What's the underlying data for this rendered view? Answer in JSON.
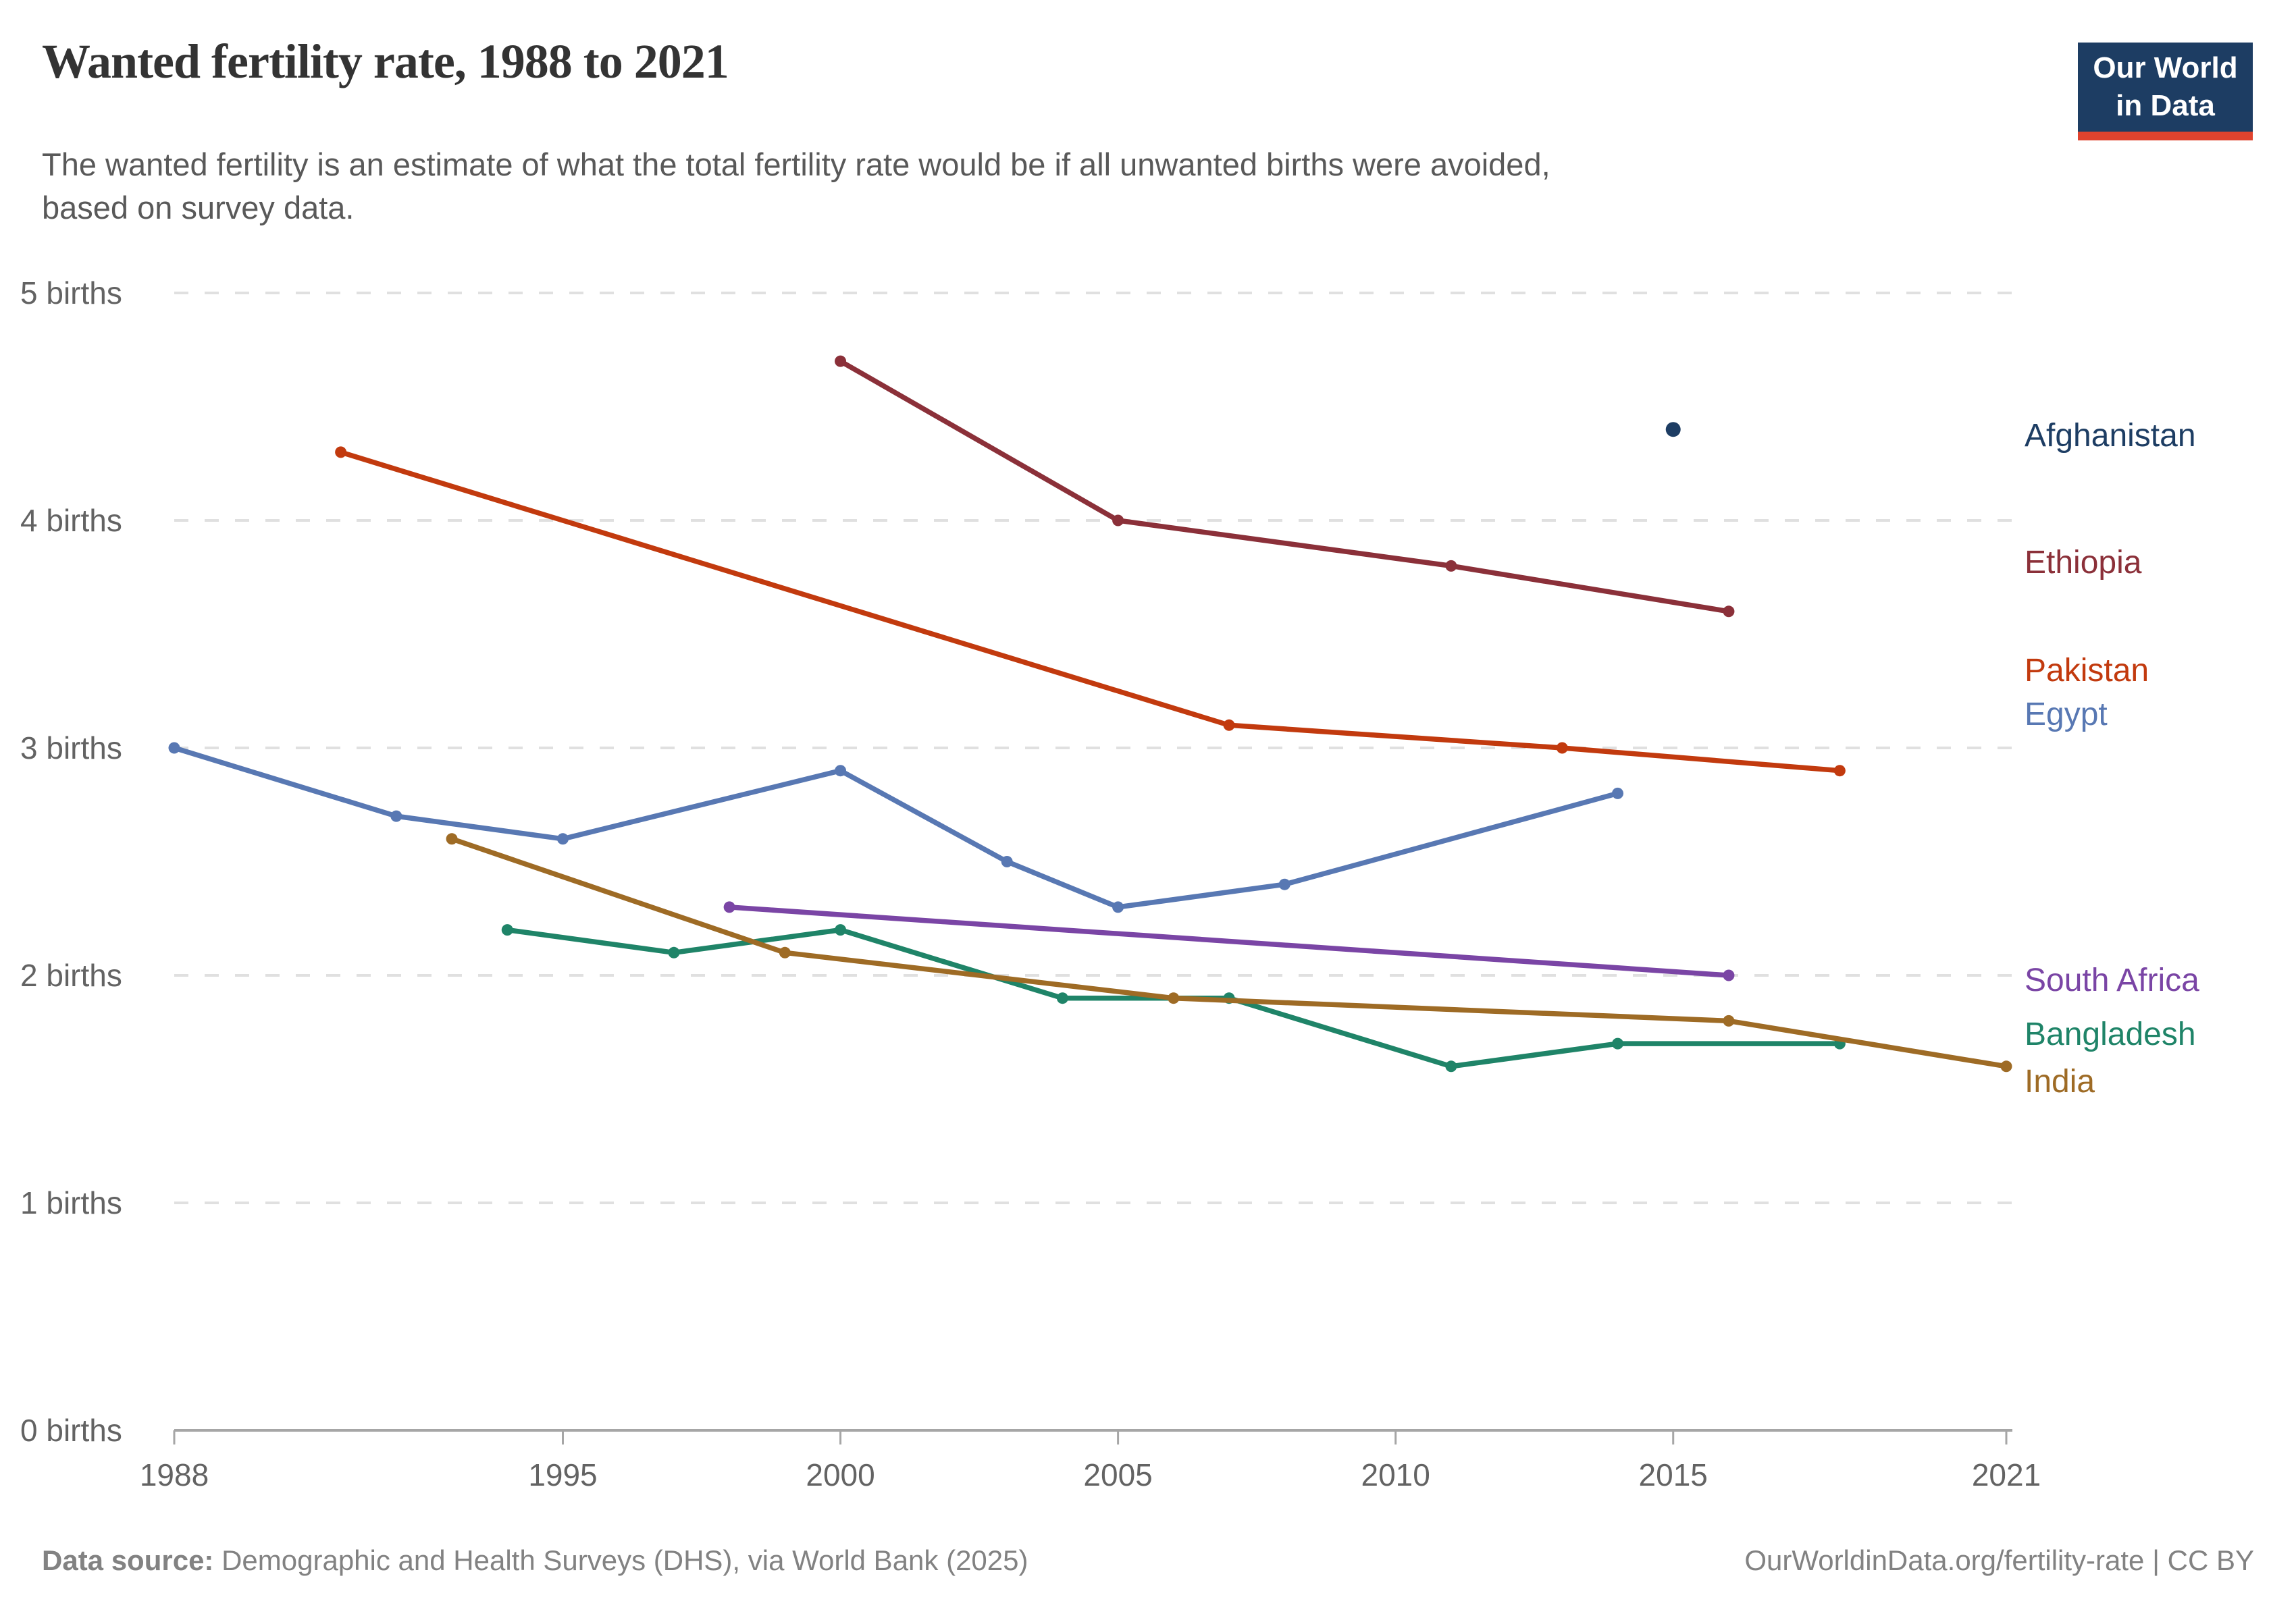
{
  "header": {
    "title": "Wanted fertility rate, 1988 to 2021",
    "subtitle_line1": "The wanted fertility is an estimate of what the total fertility rate would be if all unwanted births were avoided,",
    "subtitle_line2": "based on survey data.",
    "logo": {
      "line1": "Our World",
      "line2": "in Data",
      "bg_color": "#1d3d63",
      "accent_color": "#e0432e"
    }
  },
  "footer": {
    "source_label": "Data source:",
    "source_text": " Demographic and Health Surveys (DHS), via World Bank (2025)",
    "license_text": "OurWorldinData.org/fertility-rate | CC BY"
  },
  "chart_data": {
    "type": "line",
    "title": "Wanted fertility rate, 1988 to 2021",
    "xlabel": "",
    "ylabel": "births",
    "xlim": [
      1988,
      2021
    ],
    "ylim": [
      0,
      5
    ],
    "grid": "horizontal-dashed",
    "legend_position": "right",
    "x_ticks": [
      1988,
      1995,
      2000,
      2005,
      2010,
      2015,
      2021
    ],
    "y_ticks": [
      {
        "value": 0,
        "label": "0 births"
      },
      {
        "value": 1,
        "label": "1 births"
      },
      {
        "value": 2,
        "label": "2 births"
      },
      {
        "value": 3,
        "label": "3 births"
      },
      {
        "value": 4,
        "label": "4 births"
      },
      {
        "value": 5,
        "label": "5 births"
      }
    ],
    "series": [
      {
        "name": "Afghanistan",
        "color": "#1d3d63",
        "points": [
          [
            2015,
            4.4
          ]
        ]
      },
      {
        "name": "Ethiopia",
        "color": "#8b3039",
        "points": [
          [
            2000,
            4.7
          ],
          [
            2005,
            4.0
          ],
          [
            2011,
            3.8
          ],
          [
            2016,
            3.6
          ]
        ]
      },
      {
        "name": "Pakistan",
        "color": "#c23a0e",
        "points": [
          [
            1991,
            4.3
          ],
          [
            2007,
            3.1
          ],
          [
            2013,
            3.0
          ],
          [
            2018,
            2.9
          ]
        ]
      },
      {
        "name": "Egypt",
        "color": "#5878b3",
        "points": [
          [
            1988,
            3.0
          ],
          [
            1992,
            2.7
          ],
          [
            1995,
            2.6
          ],
          [
            2000,
            2.9
          ],
          [
            2003,
            2.5
          ],
          [
            2005,
            2.3
          ],
          [
            2008,
            2.4
          ],
          [
            2014,
            2.8
          ]
        ]
      },
      {
        "name": "South Africa",
        "color": "#7a45a5",
        "points": [
          [
            1998,
            2.3
          ],
          [
            2016,
            2.0
          ]
        ]
      },
      {
        "name": "Bangladesh",
        "color": "#1f8468",
        "points": [
          [
            1994,
            2.2
          ],
          [
            1997,
            2.1
          ],
          [
            2000,
            2.2
          ],
          [
            2004,
            1.9
          ],
          [
            2007,
            1.9
          ],
          [
            2011,
            1.6
          ],
          [
            2014,
            1.7
          ],
          [
            2018,
            1.7
          ]
        ]
      },
      {
        "name": "India",
        "color": "#9e6b25",
        "points": [
          [
            1993,
            2.6
          ],
          [
            1999,
            2.1
          ],
          [
            2006,
            1.9
          ],
          [
            2016,
            1.8
          ],
          [
            2021,
            1.6
          ]
        ]
      }
    ]
  }
}
